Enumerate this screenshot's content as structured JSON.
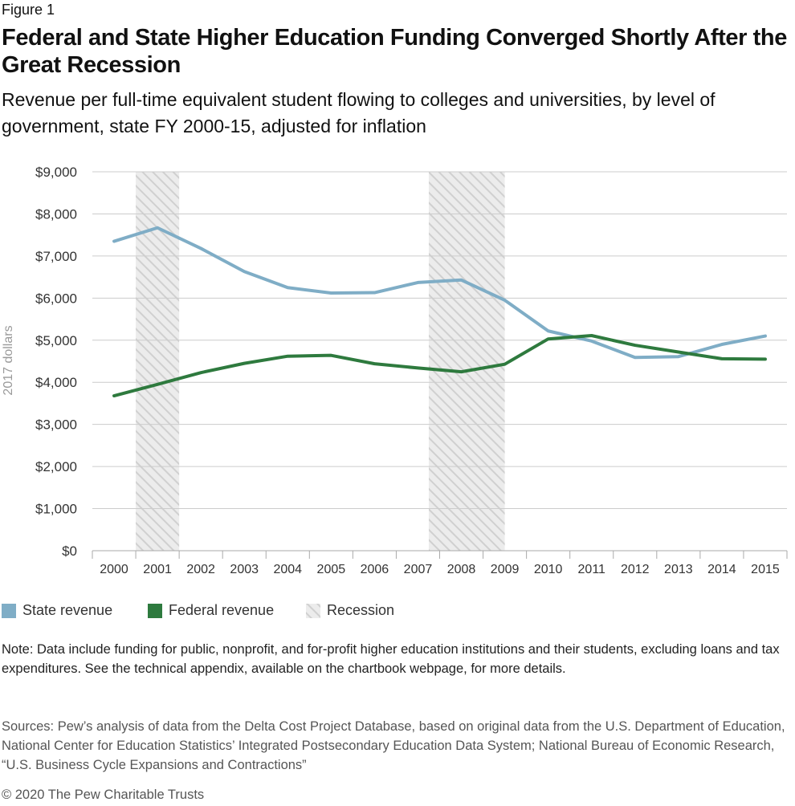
{
  "figure_label": "Figure 1",
  "title": "Federal and State Higher Education Funding Converged Shortly After the Great Recession",
  "subtitle": "Revenue per full-time equivalent student flowing to colleges and universities, by level of government, state FY 2000-15, adjusted for inflation",
  "note": "Note: Data include funding for public, nonprofit, and for-profit higher education institutions and their students, excluding loans and tax expenditures. See the technical appendix, available on the chartbook webpage, for more details.",
  "sources": "Sources: Pew’s analysis of data from the Delta Cost Project Database, based on original data from the U.S. Department of Education, National Center for Education Statistics’ Integrated Postsecondary Education Data System; National Bureau of Economic Research, “U.S. Business Cycle Expansions and Contractions”",
  "copyright": "© 2020 The Pew Charitable Trusts",
  "colors": {
    "state": "#7fadc6",
    "federal": "#2e7a3e",
    "recession": "#d9d9d9",
    "grid": "#cccccc"
  },
  "chart_data": {
    "type": "line",
    "ylabel": "2017 dollars",
    "ylim": [
      0,
      9000
    ],
    "y_ticks": [
      0,
      1000,
      2000,
      3000,
      4000,
      5000,
      6000,
      7000,
      8000,
      9000
    ],
    "y_tick_labels": [
      "$0",
      "$1,000",
      "$2,000",
      "$3,000",
      "$4,000",
      "$5,000",
      "$6,000",
      "$7,000",
      "$8,000",
      "$9,000"
    ],
    "categories": [
      "2000",
      "2001",
      "2002",
      "2003",
      "2004",
      "2005",
      "2006",
      "2007",
      "2008",
      "2009",
      "2010",
      "2011",
      "2012",
      "2013",
      "2014",
      "2015"
    ],
    "series": [
      {
        "name": "State revenue",
        "values": [
          7350,
          7670,
          7180,
          6630,
          6250,
          6120,
          6130,
          6370,
          6430,
          5950,
          5220,
          4980,
          4590,
          4610,
          4900,
          5100
        ]
      },
      {
        "name": "Federal revenue",
        "values": [
          3680,
          3950,
          4230,
          4450,
          4620,
          4640,
          4440,
          4340,
          4250,
          4430,
          5030,
          5110,
          4880,
          4720,
          4560,
          4550
        ]
      }
    ],
    "recession_label": "Recession",
    "recessions": [
      {
        "start": 2001.0,
        "end": 2002.0
      },
      {
        "start": 2007.75,
        "end": 2009.5
      }
    ],
    "grid": true,
    "legend_position": "bottom-left"
  }
}
